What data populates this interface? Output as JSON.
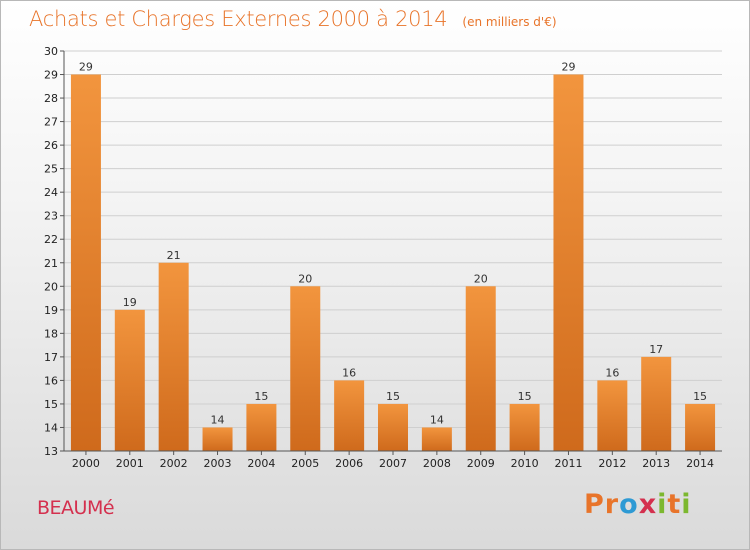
{
  "chart_data": {
    "type": "bar",
    "title": "Achats et Charges Externes 2000 à 2014",
    "subtitle": "(en milliers d'€)",
    "categories": [
      "2000",
      "2001",
      "2002",
      "2003",
      "2004",
      "2005",
      "2006",
      "2007",
      "2008",
      "2009",
      "2010",
      "2011",
      "2012",
      "2013",
      "2014"
    ],
    "values": [
      29,
      19,
      21,
      14,
      15,
      20,
      16,
      15,
      14,
      20,
      15,
      29,
      16,
      17,
      15
    ],
    "ylim": [
      13,
      30
    ],
    "yticks": [
      13,
      14,
      15,
      16,
      17,
      18,
      19,
      20,
      21,
      22,
      23,
      24,
      25,
      26,
      27,
      28,
      29,
      30
    ],
    "grid": true,
    "bar_color": "#f2953e",
    "bar_color_dark": "#cf6a1c"
  },
  "footer": {
    "commune": "BEAUMé",
    "logo_letters": [
      "P",
      "r",
      "o",
      "x",
      "i",
      "t",
      "i"
    ],
    "logo_colors": [
      "#e8742a",
      "#e8742a",
      "#2e9ad4",
      "#d4304e",
      "#7cb82f",
      "#e8742a",
      "#7cb82f"
    ]
  }
}
